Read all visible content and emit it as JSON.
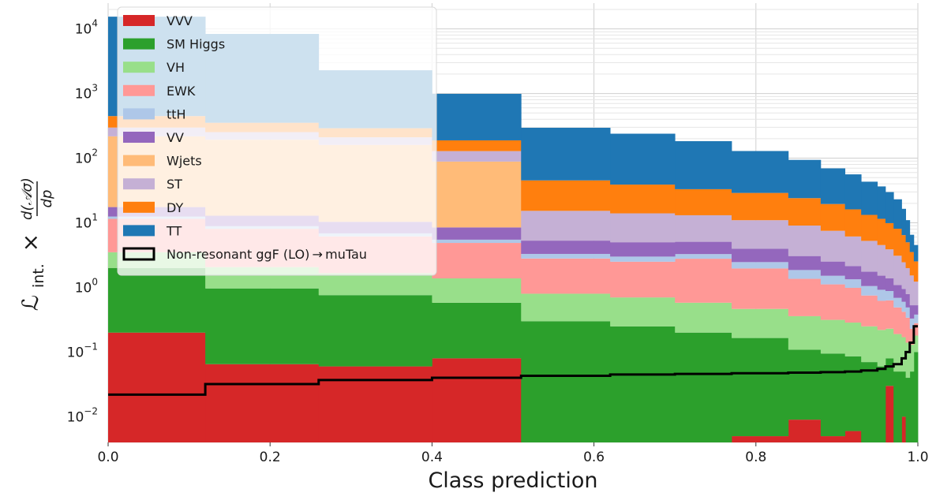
{
  "chart_data": {
    "type": "area",
    "stacked": true,
    "histogram_step": true,
    "xlabel": "Class prediction",
    "ylabel": "𝓛int. × d(𝒜σ)/dp",
    "ylabel_parts": {
      "lumi": "ℒ",
      "lumi_sub": "int.",
      "times": "×",
      "frac_num": "d(𝒜σ)",
      "frac_den": "dp"
    },
    "xlim": [
      0.0,
      1.0
    ],
    "ylim": [
      0.004,
      25000
    ],
    "y_scale": "log",
    "grid": true,
    "legend_position": "upper-left",
    "x_ticks": [
      "0.0",
      "0.2",
      "0.4",
      "0.6",
      "0.8",
      "1.0"
    ],
    "y_ticks": [
      {
        "base": "10",
        "exp": "−2",
        "value": 0.01
      },
      {
        "base": "10",
        "exp": "−1",
        "value": 0.1
      },
      {
        "base": "10",
        "exp": "0",
        "value": 1
      },
      {
        "base": "10",
        "exp": "1",
        "value": 10
      },
      {
        "base": "10",
        "exp": "2",
        "value": 100
      },
      {
        "base": "10",
        "exp": "3",
        "value": 1000
      },
      {
        "base": "10",
        "exp": "4",
        "value": 10000
      }
    ],
    "x_edges": [
      0.0,
      0.12,
      0.26,
      0.4,
      0.51,
      0.62,
      0.7,
      0.77,
      0.84,
      0.88,
      0.91,
      0.93,
      0.95,
      0.96,
      0.97,
      0.98,
      0.985,
      0.99,
      0.995,
      1.0
    ],
    "series": [
      {
        "name": "VVV",
        "color": "#d62728",
        "values": [
          0.2,
          0.065,
          0.06,
          0.08,
          0,
          0,
          0,
          0.005,
          0.009,
          0.005,
          0.006,
          0,
          0,
          0.03,
          0,
          0.01,
          0,
          0,
          0
        ]
      },
      {
        "name": "SM Higgs",
        "color": "#2ca02c",
        "values": [
          1.8,
          0.9,
          0.7,
          0.5,
          0.3,
          0.25,
          0.2,
          0.16,
          0.1,
          0.09,
          0.08,
          0.07,
          0.06,
          0.05,
          0.05,
          0.04,
          0.04,
          0.05,
          0.1
        ]
      },
      {
        "name": "VH",
        "color": "#98df8a",
        "values": [
          1.5,
          1.1,
          0.9,
          0.8,
          0.5,
          0.45,
          0.38,
          0.3,
          0.25,
          0.22,
          0.2,
          0.18,
          0.16,
          0.15,
          0.14,
          0.12,
          0.1,
          0.08,
          0.08
        ]
      },
      {
        "name": "EWK",
        "color": "#ff9896",
        "values": [
          8,
          6,
          4.5,
          3.5,
          2,
          1.8,
          2.2,
          1.5,
          1,
          0.8,
          0.7,
          0.5,
          0.4,
          0.4,
          0.3,
          0.25,
          0.2,
          0.1,
          0.1
        ]
      },
      {
        "name": "ttH",
        "color": "#aec7e8",
        "values": [
          1,
          0.8,
          0.7,
          0.6,
          0.5,
          0.5,
          0.5,
          0.5,
          0.5,
          0.4,
          0.35,
          0.3,
          0.3,
          0.25,
          0.2,
          0.18,
          0.15,
          0.1,
          0.1
        ]
      },
      {
        "name": "VV",
        "color": "#9467bd",
        "values": [
          5,
          4,
          3.5,
          3,
          2,
          2,
          1.8,
          1.5,
          1.2,
          1,
          0.8,
          0.7,
          0.6,
          0.5,
          0.4,
          0.35,
          0.3,
          0.2,
          0.15
        ]
      },
      {
        "name": "Wjets",
        "color": "#ffbb78",
        "values": [
          200,
          180,
          150,
          80,
          0,
          0,
          0,
          0,
          0,
          0,
          0,
          0,
          0,
          0,
          0,
          0,
          0,
          0,
          0
        ]
      },
      {
        "name": "ST",
        "color": "#c5b0d5",
        "values": [
          80,
          60,
          50,
          40,
          10,
          9,
          8,
          7,
          6,
          5,
          4,
          3.5,
          3,
          2.5,
          2,
          1.5,
          1.2,
          1,
          0.7
        ]
      },
      {
        "name": "DY",
        "color": "#ff7f0e",
        "values": [
          150,
          100,
          80,
          60,
          30,
          25,
          20,
          18,
          15,
          12,
          10,
          8,
          7,
          6,
          5,
          4,
          3,
          2,
          1.3
        ]
      },
      {
        "name": "TT",
        "color": "#1f77b4",
        "values": [
          15000,
          8000,
          2000,
          800,
          250,
          200,
          150,
          100,
          70,
          50,
          40,
          30,
          25,
          20,
          15,
          10,
          6,
          3,
          2
        ]
      }
    ],
    "signal": {
      "name": "Non-resonant ggF (LO) → muTau",
      "color": "#000000",
      "values": [
        0.022,
        0.032,
        0.037,
        0.04,
        0.043,
        0.045,
        0.046,
        0.047,
        0.048,
        0.049,
        0.05,
        0.052,
        0.055,
        0.06,
        0.065,
        0.08,
        0.1,
        0.14,
        0.25
      ]
    },
    "legend_order": [
      "VVV",
      "SM Higgs",
      "VH",
      "EWK",
      "ttH",
      "VV",
      "Wjets",
      "ST",
      "DY",
      "TT",
      "Non-resonant ggF (LO) → muTau"
    ]
  }
}
